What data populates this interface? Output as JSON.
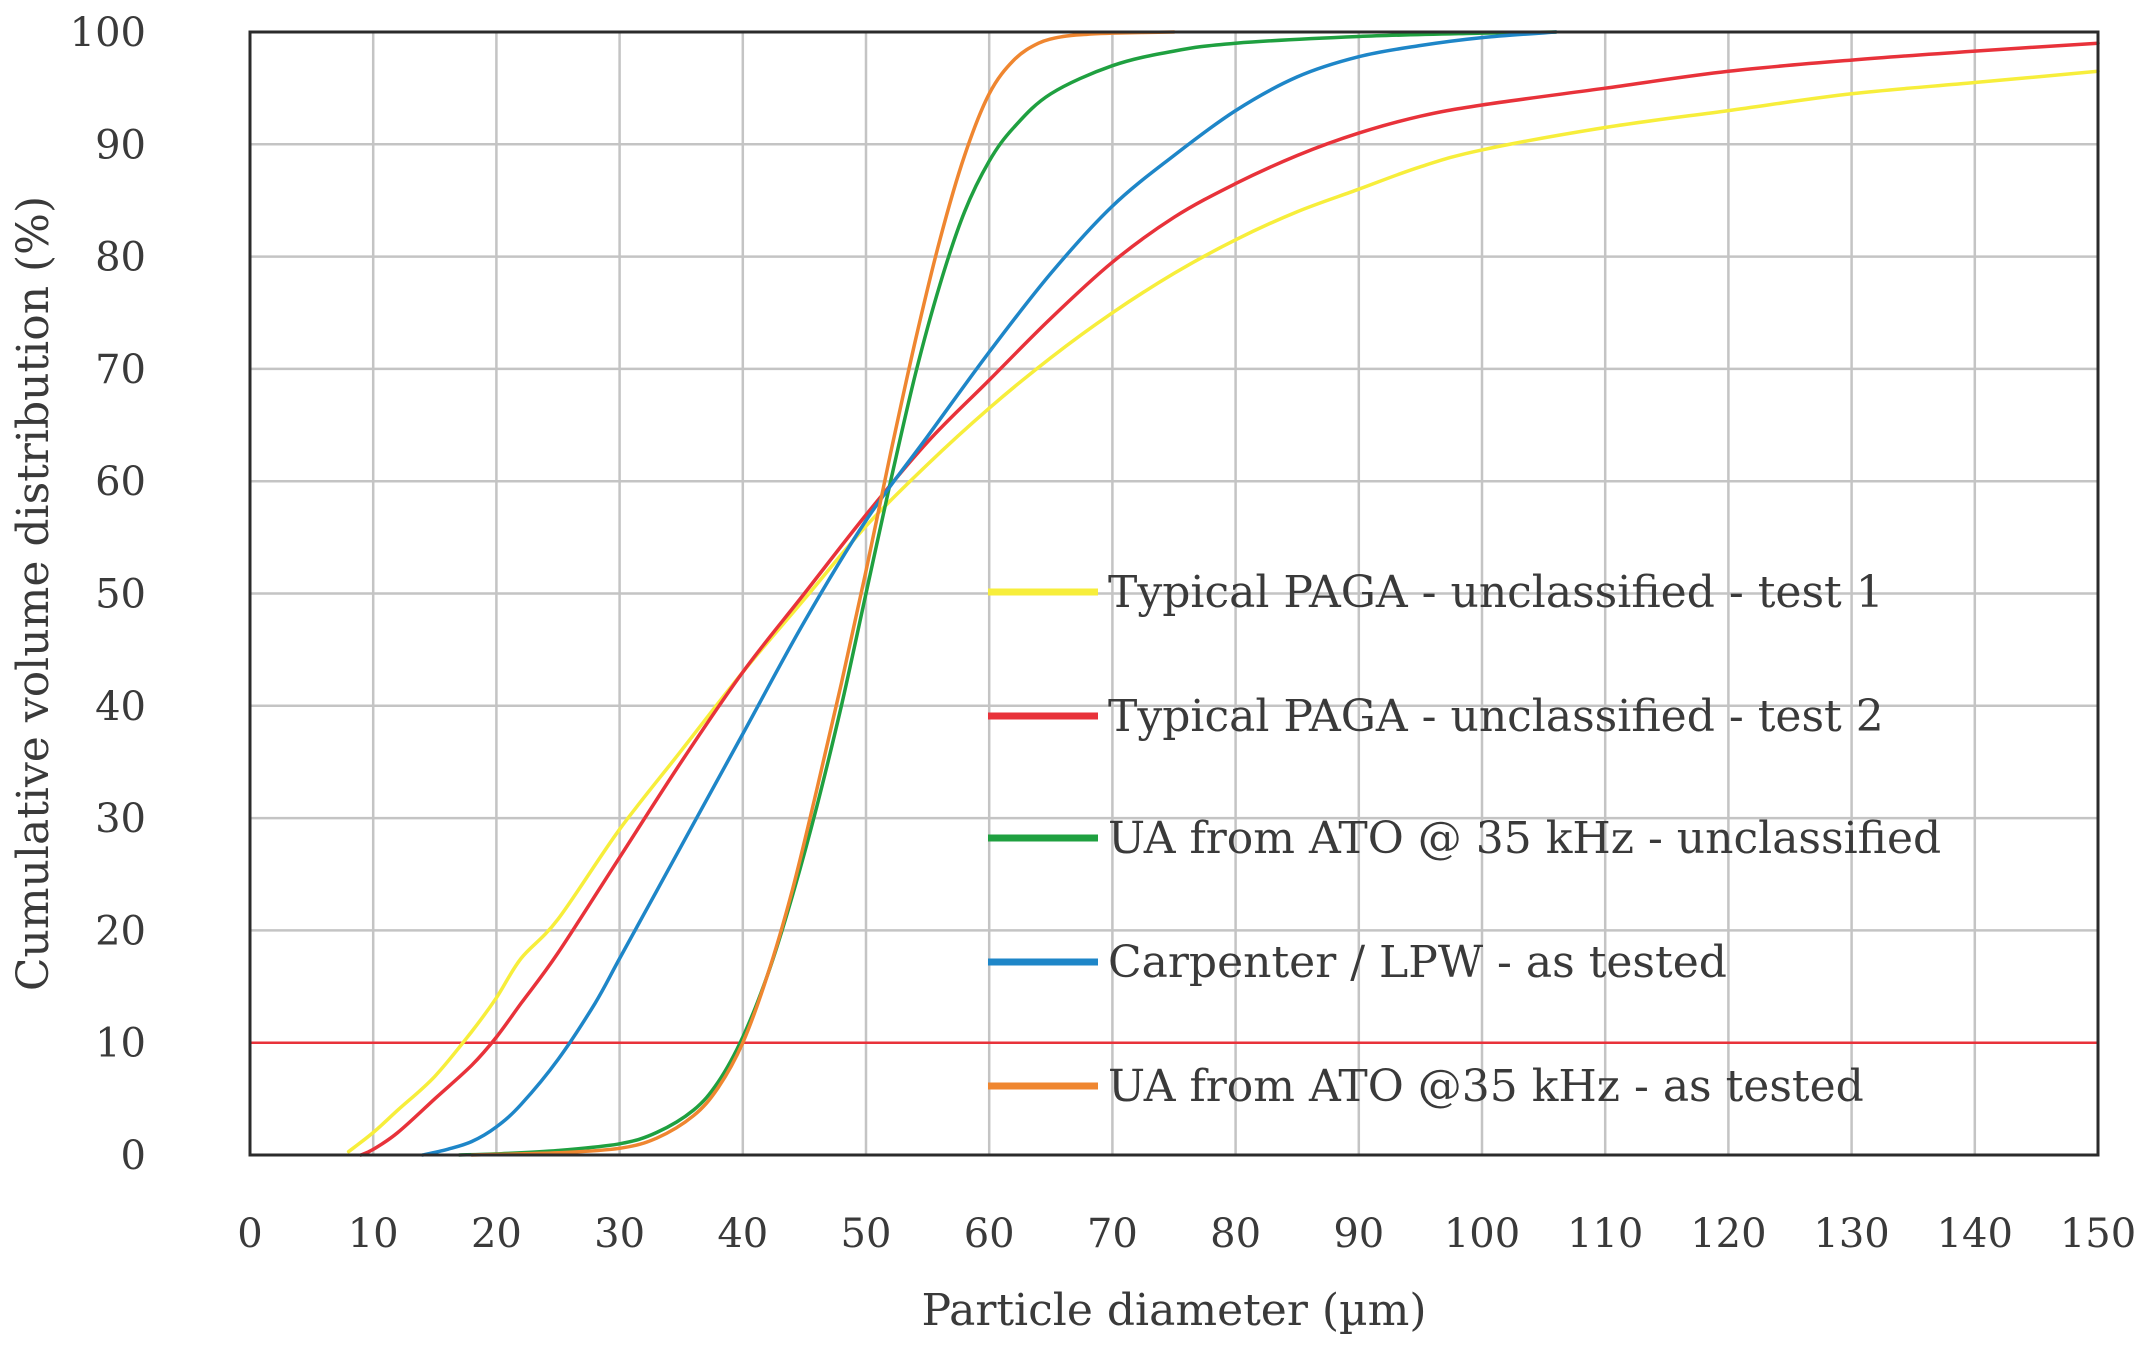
{
  "chart_data": {
    "type": "line",
    "title": "",
    "xlabel": "Particle diameter (µm)",
    "ylabel": "Cumulative volume distribution (%)",
    "xlim": [
      0,
      150
    ],
    "ylim": [
      0,
      100
    ],
    "xticks": [
      0,
      10,
      20,
      30,
      40,
      50,
      60,
      70,
      80,
      90,
      100,
      110,
      120,
      130,
      140,
      150
    ],
    "yticks": [
      0,
      10,
      20,
      30,
      40,
      50,
      60,
      70,
      80,
      90,
      100
    ],
    "grid": true,
    "legend_position": "center-right",
    "reference_lines": [
      {
        "axis": "y",
        "value": 10,
        "color": "#e8323a"
      }
    ],
    "series": [
      {
        "name": "Typical PAGA - unclassified - test 1",
        "color": "#f7ee3b",
        "x": [
          8,
          10,
          12,
          15,
          18,
          20,
          22,
          25,
          30,
          35,
          40,
          45,
          50,
          55,
          60,
          65,
          70,
          75,
          80,
          85,
          90,
          95,
          100,
          110,
          120,
          130,
          140,
          150
        ],
        "y": [
          0.3,
          2,
          4,
          7,
          11,
          14,
          17.5,
          21,
          29,
          36,
          43,
          49.5,
          56,
          61.5,
          66.5,
          71,
          75,
          78.5,
          81.5,
          84,
          86,
          88,
          89.5,
          91.5,
          93,
          94.5,
          95.5,
          96.5
        ]
      },
      {
        "name": "Typical PAGA - unclassified - test 2",
        "color": "#e8323a",
        "x": [
          9,
          10,
          12,
          15,
          18,
          20,
          22,
          25,
          30,
          35,
          40,
          45,
          50,
          55,
          60,
          65,
          70,
          75,
          80,
          85,
          90,
          95,
          100,
          110,
          120,
          130,
          140,
          150
        ],
        "y": [
          0,
          0.5,
          2,
          5,
          8,
          10.5,
          13.5,
          18,
          26.5,
          35,
          43,
          50,
          57,
          63.5,
          69,
          74.5,
          79.5,
          83.5,
          86.5,
          89,
          91,
          92.5,
          93.5,
          95,
          96.5,
          97.5,
          98.3,
          99
        ]
      },
      {
        "name": "UA from ATO @ 35 kHz - unclassified",
        "color": "#1fa040",
        "x": [
          17,
          20,
          25,
          30,
          33,
          36,
          38,
          40,
          42,
          44,
          46,
          48,
          50,
          52,
          54,
          56,
          58,
          60,
          62,
          65,
          70,
          75,
          80,
          90,
          100,
          106
        ],
        "y": [
          0,
          0.1,
          0.4,
          1,
          2,
          4,
          6.5,
          10.5,
          16,
          23,
          31,
          40,
          50,
          60,
          69.5,
          77.5,
          84,
          88.5,
          91.5,
          94.5,
          97,
          98.3,
          99,
          99.6,
          99.9,
          100
        ]
      },
      {
        "name": "Carpenter / LPW - as tested",
        "color": "#1e86c8",
        "x": [
          14,
          16,
          18,
          20,
          22,
          25,
          28,
          30,
          33,
          36,
          40,
          45,
          50,
          55,
          60,
          65,
          70,
          75,
          80,
          85,
          90,
          95,
          100,
          106
        ],
        "y": [
          0,
          0.5,
          1.2,
          2.5,
          4.5,
          8.5,
          13.5,
          17.5,
          23.5,
          29.5,
          37.5,
          47.5,
          56.5,
          64,
          71.5,
          78.5,
          84.5,
          89,
          93,
          96,
          97.8,
          98.8,
          99.5,
          100
        ]
      },
      {
        "name": "UA from ATO @35 kHz - as tested",
        "color": "#ef8630",
        "x": [
          18,
          25,
          30,
          33,
          36,
          38,
          40,
          42,
          44,
          46,
          48,
          50,
          52,
          54,
          56,
          58,
          60,
          62,
          64,
          66,
          68,
          70,
          75
        ],
        "y": [
          0,
          0.2,
          0.6,
          1.5,
          3.5,
          6,
          10,
          16,
          23.5,
          32.5,
          42,
          52,
          62.5,
          72.5,
          81.5,
          89,
          94.5,
          97.5,
          99,
          99.6,
          99.8,
          99.9,
          100
        ]
      }
    ]
  }
}
